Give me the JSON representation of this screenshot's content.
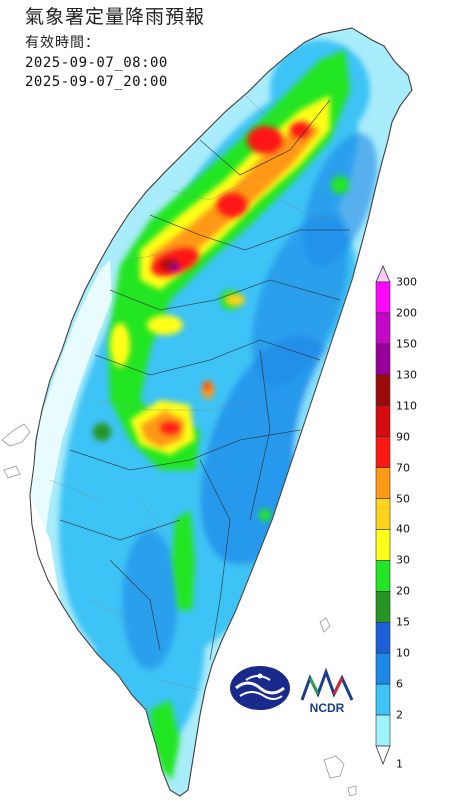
{
  "header": {
    "title": "氣象署定量降雨預報",
    "valid_label": "有效時間：",
    "start_time": "2025-09-07_08:00",
    "end_time": "2025-09-07_20:00"
  },
  "legend": {
    "levels": [
      "1",
      "2",
      "6",
      "10",
      "15",
      "20",
      "30",
      "40",
      "50",
      "70",
      "90",
      "110",
      "130",
      "150",
      "200",
      "300"
    ],
    "colors": [
      "#c1fdfd",
      "#9ef2fc",
      "#3dc3f5",
      "#1c88e8",
      "#1a60d8",
      "#279523",
      "#22e623",
      "#fffe18",
      "#ffd21c",
      "#ff9813",
      "#fe1814",
      "#d60c10",
      "#9d0809",
      "#990099",
      "#c507c9",
      "#fd07fd",
      "#fdc9fd"
    ]
  },
  "logos": [
    {
      "name": "cwa-logo",
      "icon": "cwa-logo-icon"
    },
    {
      "name": "ncdr-logo",
      "icon": "ncdr-logo-icon",
      "text": "NCDR"
    }
  ]
}
